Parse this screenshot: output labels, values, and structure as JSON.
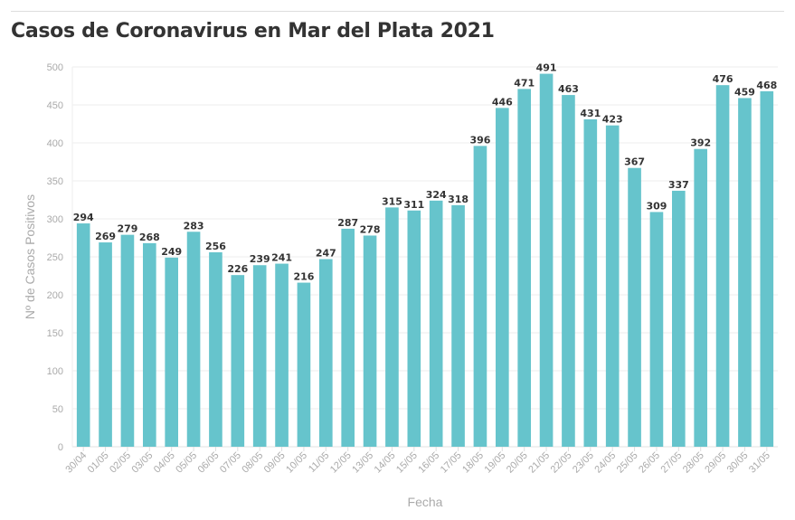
{
  "chart_data": {
    "type": "bar",
    "title": "Casos de Coronavirus en Mar del Plata 2021",
    "xlabel": "Fecha",
    "ylabel": "Nº de Casos Positivos",
    "ylim": [
      0,
      500
    ],
    "yticks": [
      0,
      50,
      100,
      150,
      200,
      250,
      300,
      350,
      400,
      450,
      500
    ],
    "grid": true,
    "bar_color": "#66c4cc",
    "categories": [
      "30/04",
      "01/05",
      "02/05",
      "03/05",
      "04/05",
      "05/05",
      "06/05",
      "07/05",
      "08/05",
      "09/05",
      "10/05",
      "11/05",
      "12/05",
      "13/05",
      "14/05",
      "15/05",
      "16/05",
      "17/05",
      "18/05",
      "19/05",
      "20/05",
      "21/05",
      "22/05",
      "23/05",
      "24/05",
      "25/05",
      "26/05",
      "27/05",
      "28/05",
      "29/05",
      "30/05",
      "31/05"
    ],
    "values": [
      294,
      269,
      279,
      268,
      249,
      283,
      256,
      226,
      239,
      241,
      216,
      247,
      287,
      278,
      315,
      311,
      324,
      318,
      396,
      446,
      471,
      491,
      463,
      431,
      423,
      367,
      309,
      337,
      392,
      476,
      459,
      468
    ]
  }
}
